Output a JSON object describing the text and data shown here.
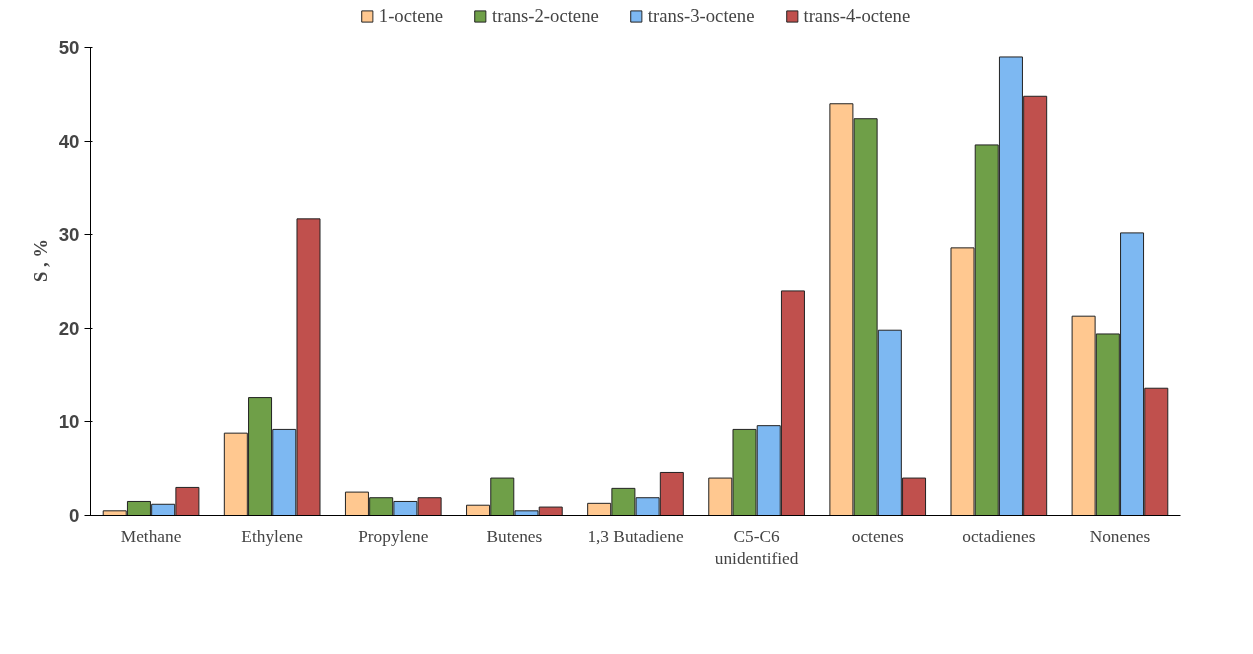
{
  "chart_data": {
    "type": "bar",
    "ylabel": "S , %",
    "categories": [
      "Methane",
      "Ethylene",
      "Propylene",
      "Butenes",
      "1,3 Butadiene",
      "C5-C6\nunidentified",
      "octenes",
      "octadienes",
      "Nonenes"
    ],
    "series": [
      {
        "name": "1-octene",
        "color": "#ffc890",
        "values": [
          0.5,
          8.8,
          2.5,
          1.1,
          1.3,
          4.0,
          44.0,
          28.6,
          21.3
        ]
      },
      {
        "name": "trans-2-octene",
        "color": "#6f9f48",
        "values": [
          1.5,
          12.6,
          1.9,
          4.0,
          2.9,
          9.2,
          42.4,
          39.6,
          19.4
        ]
      },
      {
        "name": "trans-3-octene",
        "color": "#7db8f2",
        "values": [
          1.2,
          9.2,
          1.5,
          0.5,
          1.9,
          9.6,
          19.8,
          49.0,
          30.2
        ]
      },
      {
        "name": "trans-4-octene",
        "color": "#c0504d",
        "values": [
          3.0,
          31.7,
          1.9,
          0.9,
          4.6,
          24.0,
          4.0,
          44.8,
          13.6
        ]
      }
    ],
    "ylim": [
      0,
      50
    ],
    "yticks": [
      0,
      10,
      20,
      30,
      40,
      50
    ],
    "grid": false,
    "legend": "top"
  }
}
